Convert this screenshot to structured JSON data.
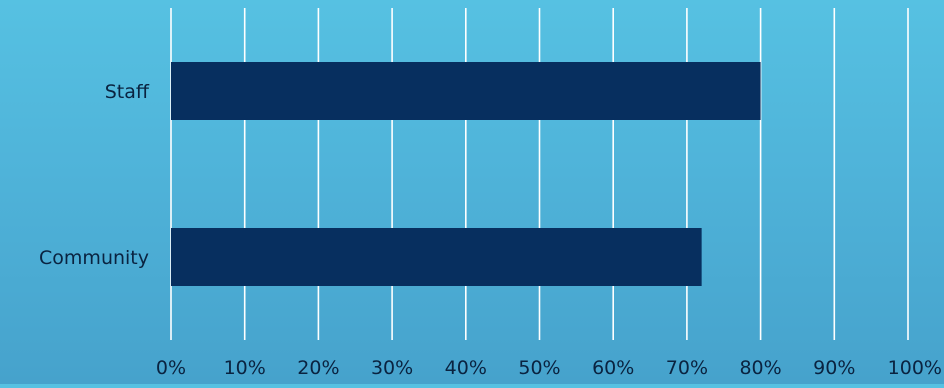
{
  "chart_data": {
    "type": "bar",
    "orientation": "horizontal",
    "categories": [
      "Staff",
      "Community"
    ],
    "values": [
      80,
      72
    ],
    "xlim": [
      0,
      100
    ],
    "x_ticks": [
      "0%",
      "10%",
      "20%",
      "30%",
      "40%",
      "50%",
      "60%",
      "70%",
      "80%",
      "90%",
      "100%"
    ],
    "grid": "vertical",
    "legend": "none",
    "colors": {
      "bar": "#072f5f",
      "grid": "#ffffff",
      "background_top": "#56c1e2",
      "background_bottom": "#46a2cc",
      "text": "#0a2340"
    }
  }
}
